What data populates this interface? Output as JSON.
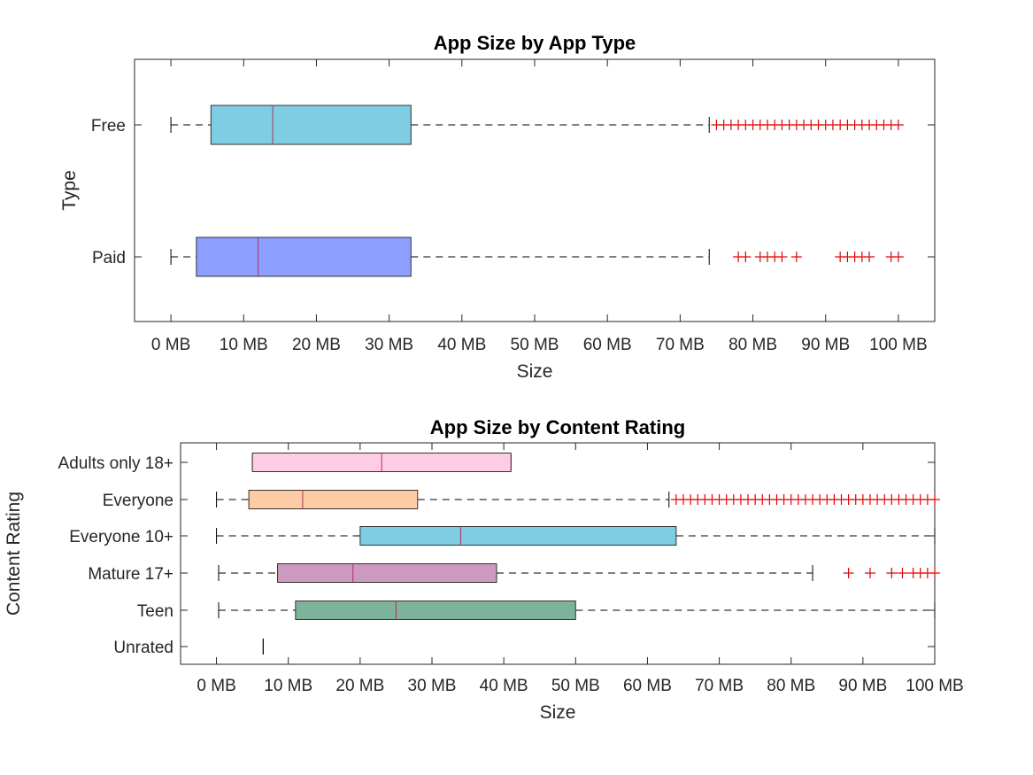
{
  "chart_data": [
    {
      "type": "boxplot",
      "orientation": "horizontal",
      "title": "App Size by App Type",
      "xlabel": "Size",
      "ylabel": "Type",
      "xlim": [
        -5,
        105
      ],
      "xticks": [
        0,
        10,
        20,
        30,
        40,
        50,
        60,
        70,
        80,
        90,
        100
      ],
      "xtick_labels": [
        "0 MB",
        "10 MB",
        "20 MB",
        "30 MB",
        "40 MB",
        "50 MB",
        "60 MB",
        "70 MB",
        "80 MB",
        "90 MB",
        "100 MB"
      ],
      "grid": false,
      "categories": [
        "Free",
        "Paid"
      ],
      "series": [
        {
          "category": "Free",
          "color": "#7ECDE3",
          "whisker_low": 0,
          "q1": 5.5,
          "median": 14,
          "q3": 33,
          "whisker_high": 74,
          "outliers": [
            75,
            76,
            77,
            78,
            79,
            80,
            81,
            82,
            83,
            84,
            85,
            86,
            87,
            88,
            89,
            90,
            91,
            92,
            93,
            94,
            95,
            96,
            97,
            98,
            99,
            100
          ]
        },
        {
          "category": "Paid",
          "color": "#8C9EFF",
          "whisker_low": 0,
          "q1": 3.5,
          "median": 12,
          "q3": 33,
          "whisker_high": 74,
          "outliers": [
            78,
            79,
            81,
            82,
            83,
            84,
            86,
            92,
            93,
            94,
            95,
            96,
            99,
            100
          ]
        }
      ]
    },
    {
      "type": "boxplot",
      "orientation": "horizontal",
      "title": "App Size by Content Rating",
      "xlabel": "Size",
      "ylabel": "Content Rating",
      "xlim": [
        -5,
        100
      ],
      "xticks": [
        0,
        10,
        20,
        30,
        40,
        50,
        60,
        70,
        80,
        90,
        100
      ],
      "xtick_labels": [
        "0 MB",
        "10 MB",
        "20 MB",
        "30 MB",
        "40 MB",
        "50 MB",
        "60 MB",
        "70 MB",
        "80 MB",
        "90 MB",
        "100 MB"
      ],
      "grid": false,
      "categories": [
        "Adults only 18+",
        "Everyone",
        "Everyone 10+",
        "Mature 17+",
        "Teen",
        "Unrated"
      ],
      "series": [
        {
          "category": "Adults only 18+",
          "color": "#FFCCE6",
          "whisker_low": 5,
          "q1": 5,
          "median": 23,
          "q3": 41,
          "whisker_high": 41,
          "outliers": []
        },
        {
          "category": "Everyone",
          "color": "#FFCBA4",
          "whisker_low": 0,
          "q1": 4.5,
          "median": 12,
          "q3": 28,
          "whisker_high": 63,
          "outliers": [
            64,
            65,
            66,
            67,
            68,
            69,
            70,
            71,
            72,
            73,
            74,
            75,
            76,
            77,
            78,
            79,
            80,
            81,
            82,
            83,
            84,
            85,
            86,
            87,
            88,
            89,
            90,
            91,
            92,
            93,
            94,
            95,
            96,
            97,
            98,
            99,
            100
          ]
        },
        {
          "category": "Everyone 10+",
          "color": "#7ECDE3",
          "whisker_low": 0,
          "q1": 20,
          "median": 34,
          "q3": 64,
          "whisker_high": 100,
          "outliers": []
        },
        {
          "category": "Mature 17+",
          "color": "#CC99BF",
          "whisker_low": 0.3,
          "q1": 8.5,
          "median": 19,
          "q3": 39,
          "whisker_high": 83,
          "outliers": [
            88,
            91,
            94,
            95.5,
            97,
            98,
            99,
            100
          ]
        },
        {
          "category": "Teen",
          "color": "#7DB39B",
          "whisker_low": 0.3,
          "q1": 11,
          "median": 25,
          "q3": 50,
          "whisker_high": 100,
          "outliers": []
        },
        {
          "category": "Unrated",
          "color": "#7DB39B",
          "whisker_low": 6.5,
          "q1": 6.5,
          "median": 6.5,
          "q3": 6.5,
          "whisker_high": 6.5,
          "outliers": []
        }
      ]
    }
  ]
}
